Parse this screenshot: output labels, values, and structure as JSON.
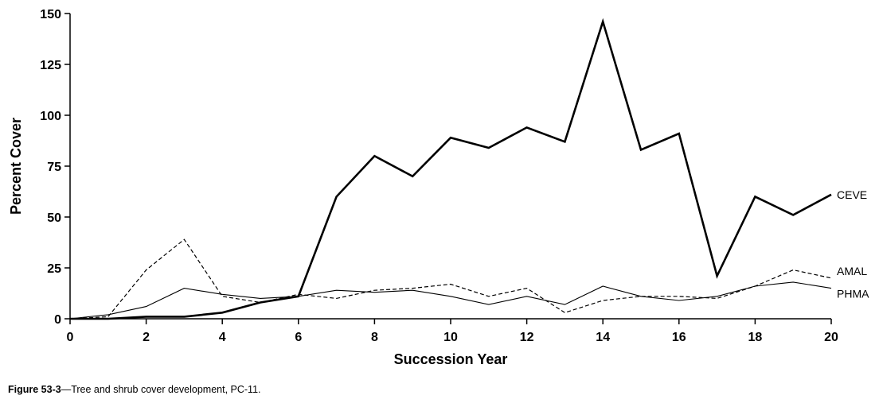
{
  "chart_data": {
    "type": "line",
    "xlabel": "Succession Year",
    "ylabel": "Percent Cover",
    "xlim": [
      0,
      20
    ],
    "ylim": [
      0,
      150
    ],
    "xticks": [
      0,
      2,
      4,
      6,
      8,
      10,
      12,
      14,
      16,
      18,
      20
    ],
    "yticks": [
      0,
      25,
      50,
      75,
      100,
      125,
      150
    ],
    "grid": false,
    "legend": "direct labels at right end of lines",
    "x": [
      0,
      1,
      2,
      3,
      4,
      5,
      6,
      7,
      8,
      9,
      10,
      11,
      12,
      13,
      14,
      15,
      16,
      17,
      18,
      19,
      20
    ],
    "series": [
      {
        "name": "CEVE",
        "style": "thick-solid",
        "color": "#000000",
        "values": [
          0,
          0,
          1,
          1,
          3,
          8,
          11,
          60,
          80,
          70,
          89,
          84,
          94,
          87,
          146,
          83,
          91,
          21,
          60,
          51,
          61
        ]
      },
      {
        "name": "AMAL",
        "style": "dashed",
        "color": "#000000",
        "values": [
          0,
          1,
          24,
          39,
          11,
          8,
          12,
          10,
          14,
          15,
          17,
          11,
          15,
          3,
          9,
          11,
          11,
          10,
          16,
          24,
          20
        ]
      },
      {
        "name": "PHMA",
        "style": "thin-solid",
        "color": "#000000",
        "values": [
          0,
          2,
          6,
          15,
          12,
          10,
          11,
          14,
          13,
          14,
          11,
          7,
          11,
          7,
          16,
          11,
          9,
          11,
          16,
          18,
          15
        ]
      }
    ]
  },
  "caption": {
    "figure_number": "Figure 53-3",
    "text": "—Tree and shrub cover development, PC-11."
  }
}
